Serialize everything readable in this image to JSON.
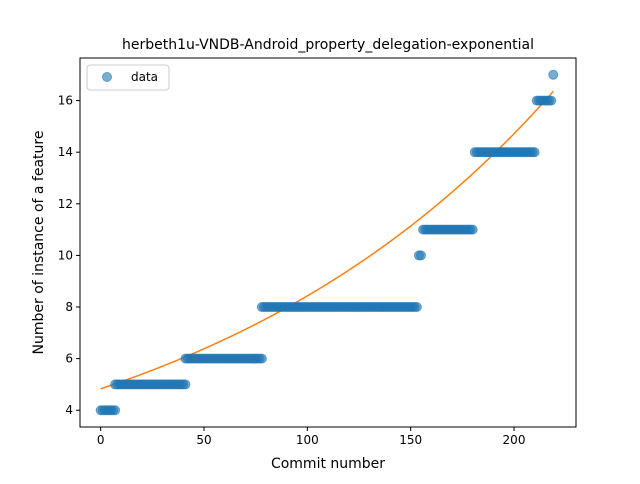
{
  "chart_data": {
    "type": "scatter",
    "title": "herbeth1u-VNDB-Android_property_delegation-exponential",
    "xlabel": "Commit number",
    "ylabel": "Number of instance of a feature",
    "xlim": [
      -10,
      230
    ],
    "ylim": [
      3.35,
      17.65
    ],
    "xticks": [
      0,
      50,
      100,
      150,
      200
    ],
    "yticks": [
      4,
      6,
      8,
      10,
      12,
      14,
      16
    ],
    "grid": false,
    "legend": {
      "position": "top-left",
      "entries": [
        "data"
      ]
    },
    "colors": {
      "points": "#1f77b4",
      "fit": "#ff7f0e"
    },
    "segments": [
      {
        "x_start": 0,
        "x_end": 7,
        "y": 4
      },
      {
        "x_start": 7,
        "x_end": 41,
        "y": 5
      },
      {
        "x_start": 41,
        "x_end": 78,
        "y": 6
      },
      {
        "x_start": 78,
        "x_end": 153,
        "y": 8
      },
      {
        "x_start": 154,
        "x_end": 155,
        "y": 10
      },
      {
        "x_start": 156,
        "x_end": 180,
        "y": 11
      },
      {
        "x_start": 181,
        "x_end": 210,
        "y": 14
      },
      {
        "x_start": 211,
        "x_end": 218,
        "y": 16
      },
      {
        "x_start": 219,
        "x_end": 219,
        "y": 17
      }
    ],
    "series": [
      {
        "name": "data",
        "kind": "scatter"
      },
      {
        "kind": "line",
        "model": "exponential",
        "a": 4.83,
        "b": 0.00557,
        "x_range": [
          0,
          219
        ]
      }
    ]
  }
}
